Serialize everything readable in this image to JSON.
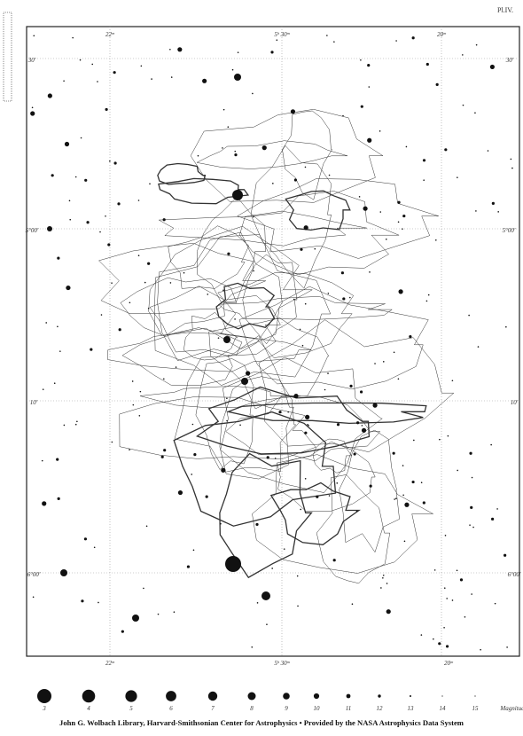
{
  "header": {
    "plate": "Pl.IV."
  },
  "axes": {
    "top": [
      "22ᵐ",
      "5ʰ 30ᵐ",
      "20ᵐ"
    ],
    "left": [
      "30′",
      "5°00′",
      "10′",
      "6°00′"
    ],
    "right": [
      "30′",
      "5°00′",
      "10′",
      "6°00′"
    ],
    "bottom": [
      "22ᵐ",
      "5ʰ 30ᵐ",
      "20ᵐ"
    ]
  },
  "legend": {
    "magnitudes": [
      "3",
      "4",
      "5",
      "6",
      "7",
      "8",
      "9",
      "10",
      "11",
      "12",
      "13",
      "14",
      "15"
    ],
    "caption": "Magnitud"
  },
  "footer": "John G. Wolbach Library, Harvard-Smithsonian Center for Astrophysics  •  Provided by the NASA Astrophysics Data System"
}
